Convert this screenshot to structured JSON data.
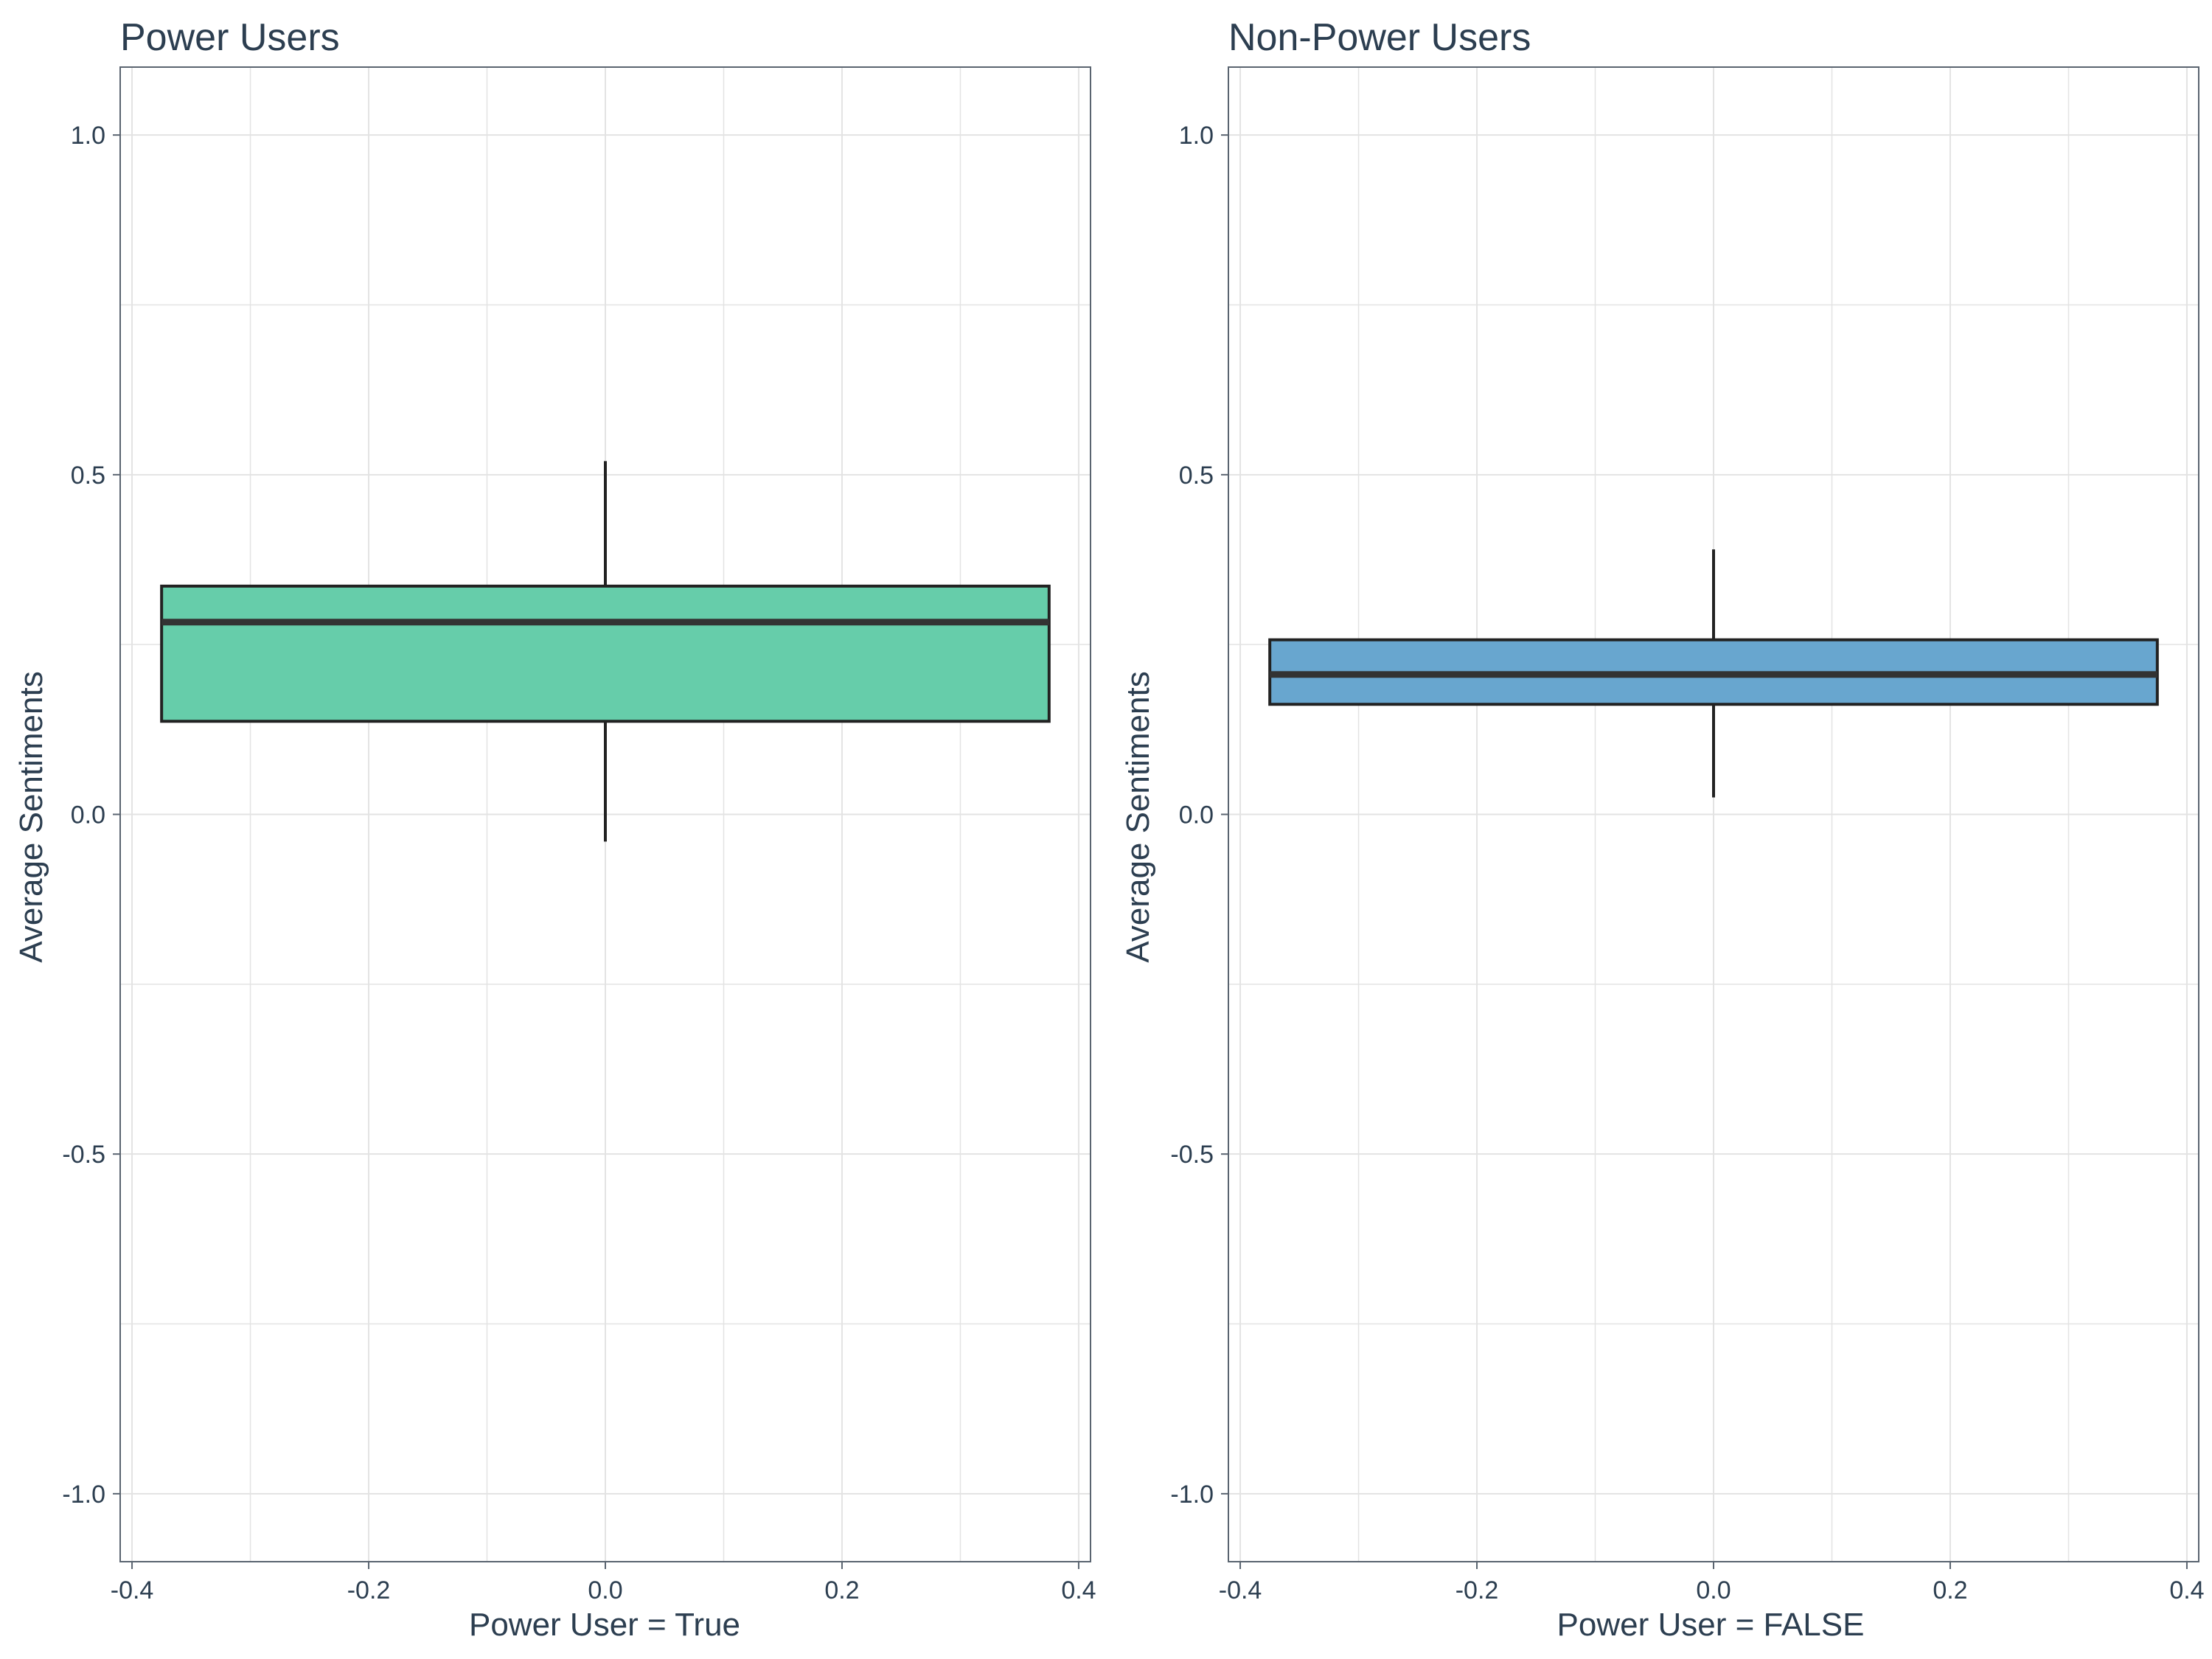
{
  "colors": {
    "text": "#2c3e50",
    "grid": "#e3e3e3",
    "frame": "#5a6470",
    "box_line": "#222222"
  },
  "chart_data": [
    {
      "type": "box",
      "title": "Power Users",
      "xlabel": "Power User = True",
      "ylabel": "Average Sentiments",
      "xlim": [
        -0.41,
        0.41
      ],
      "ylim": [
        -1.1,
        1.1
      ],
      "xticks": [
        -0.4,
        -0.2,
        0.0,
        0.2,
        0.4
      ],
      "xtick_labels": [
        "-0.4",
        "-0.2",
        "0.0",
        "0.2",
        "0.4"
      ],
      "yticks": [
        -1.0,
        -0.5,
        0.0,
        0.5,
        1.0
      ],
      "ytick_labels": [
        "-1.0",
        "-0.5",
        "0.0",
        "0.5",
        "1.0"
      ],
      "grid": true,
      "fill": "#66cdaa",
      "box": {
        "x": 0.0,
        "half_width": 0.375,
        "whisker_low": -0.04,
        "q1": 0.137,
        "median": 0.283,
        "q3": 0.336,
        "whisker_high": 0.52
      }
    },
    {
      "type": "box",
      "title": "Non-Power Users",
      "xlabel": "Power User = FALSE",
      "ylabel": "Average Sentiments",
      "xlim": [
        -0.41,
        0.41
      ],
      "ylim": [
        -1.1,
        1.1
      ],
      "xticks": [
        -0.4,
        -0.2,
        0.0,
        0.2,
        0.4
      ],
      "xtick_labels": [
        "-0.4",
        "-0.2",
        "0.0",
        "0.2",
        "0.4"
      ],
      "yticks": [
        -1.0,
        -0.5,
        0.0,
        0.5,
        1.0
      ],
      "ytick_labels": [
        "-1.0",
        "-0.5",
        "0.0",
        "0.5",
        "1.0"
      ],
      "grid": true,
      "fill": "#68a6cf",
      "box": {
        "x": 0.0,
        "half_width": 0.375,
        "whisker_low": 0.025,
        "q1": 0.162,
        "median": 0.206,
        "q3": 0.257,
        "whisker_high": 0.39
      }
    }
  ]
}
